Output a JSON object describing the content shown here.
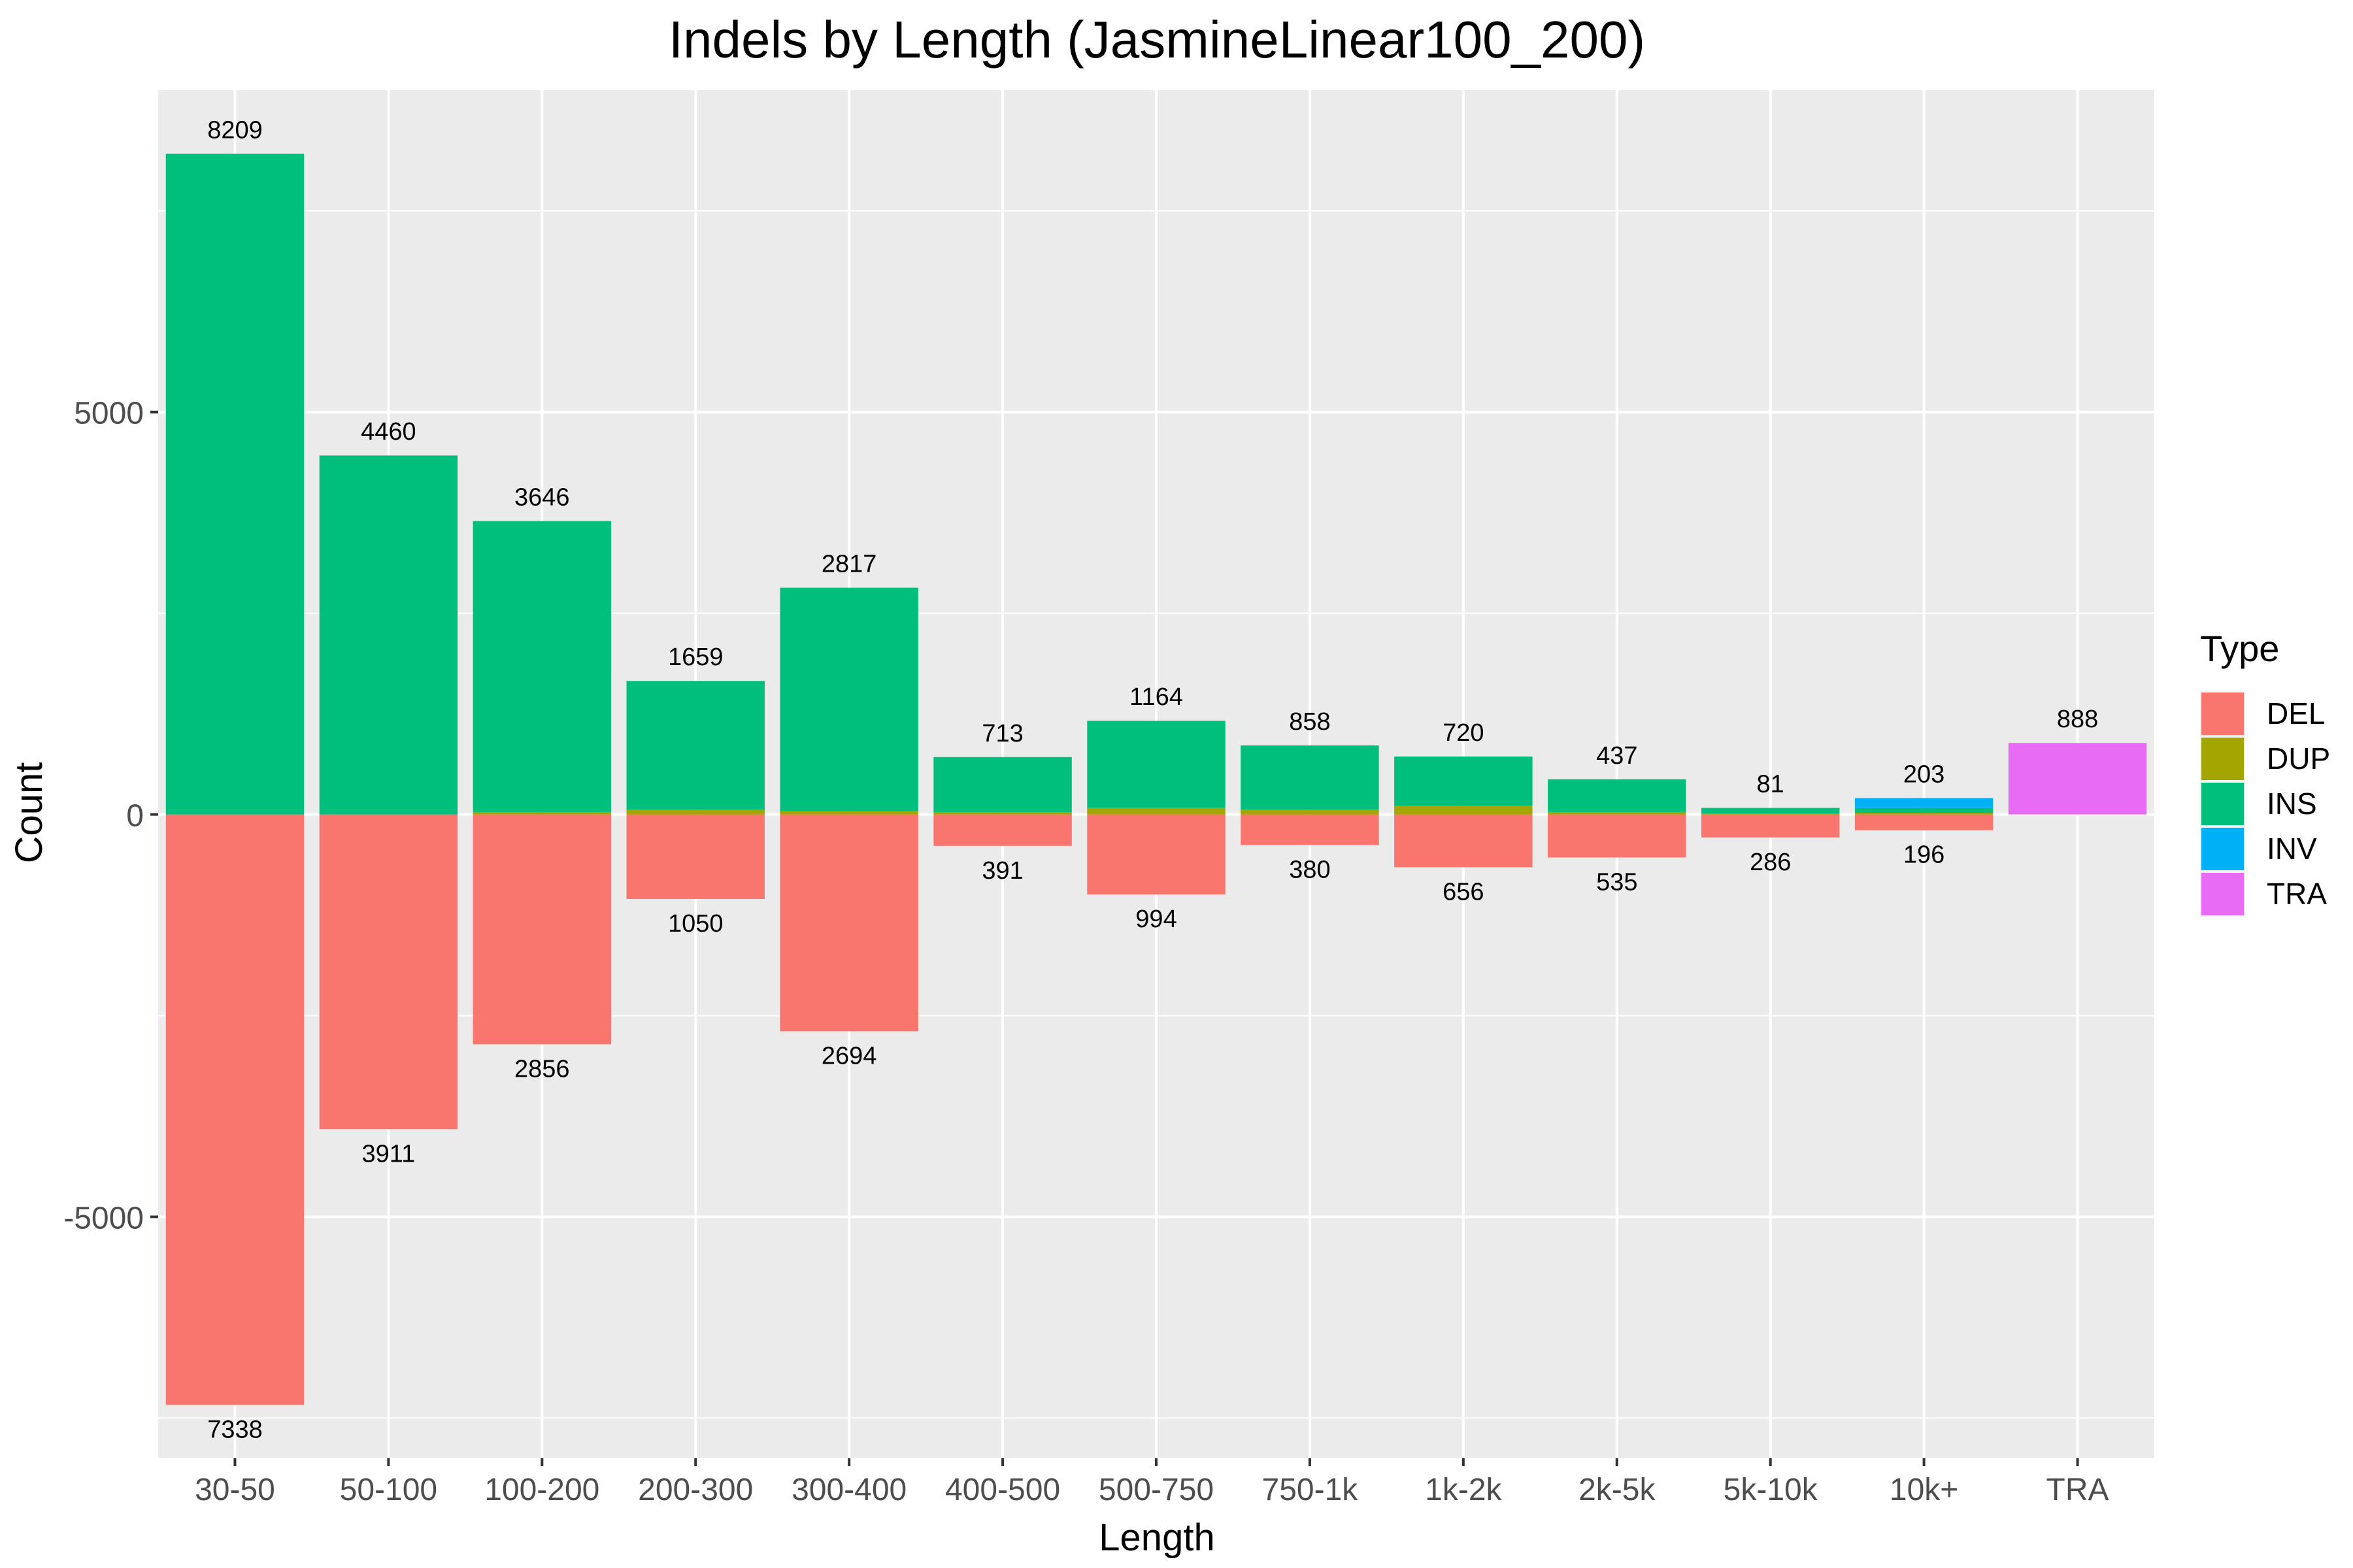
{
  "chart_data": {
    "type": "bar",
    "title": "Indels by Length (JasmineLinear100_200)",
    "xlabel": "Length",
    "ylabel": "Count",
    "ylim": [
      -8000,
      9000
    ],
    "yticks": [
      -5000,
      0,
      5000
    ],
    "ytick_labels": [
      "-5000",
      "0",
      "5000"
    ],
    "grid": true,
    "stacked": true,
    "legend": {
      "title": "Type",
      "position": "right"
    },
    "categories": [
      "30-50",
      "50-100",
      "100-200",
      "200-300",
      "300-400",
      "400-500",
      "500-750",
      "750-1k",
      "1k-2k",
      "2k-5k",
      "5k-10k",
      "10k+",
      "TRA"
    ],
    "series": [
      {
        "name": "DEL",
        "color": "#F8766D",
        "values": [
          -7338,
          -3911,
          -2856,
          -1050,
          -2694,
          -391,
          -994,
          -380,
          -656,
          -535,
          -286,
          -196,
          0
        ]
      },
      {
        "name": "DUP",
        "color": "#A3A500",
        "values": [
          0,
          0,
          30,
          60,
          40,
          30,
          80,
          60,
          110,
          30,
          10,
          20,
          0
        ]
      },
      {
        "name": "INS",
        "color": "#00BF7D",
        "values": [
          8209,
          4460,
          3616,
          1599,
          2777,
          683,
          1084,
          798,
          610,
          407,
          71,
          60,
          0
        ]
      },
      {
        "name": "INV",
        "color": "#00B0F6",
        "values": [
          0,
          0,
          0,
          0,
          0,
          0,
          0,
          0,
          0,
          0,
          0,
          123,
          0
        ]
      },
      {
        "name": "TRA",
        "color": "#E76BF3",
        "values": [
          0,
          0,
          0,
          0,
          0,
          0,
          0,
          0,
          0,
          0,
          0,
          0,
          888
        ]
      }
    ],
    "positive_labels": [
      "8209",
      "4460",
      "3646",
      "1659",
      "2817",
      "713",
      "1164",
      "858",
      "720",
      "437",
      "81",
      "203",
      "888"
    ],
    "negative_labels": [
      "7338",
      "3911",
      "2856",
      "1050",
      "2694",
      "391",
      "994",
      "380",
      "656",
      "535",
      "286",
      "196",
      ""
    ]
  }
}
